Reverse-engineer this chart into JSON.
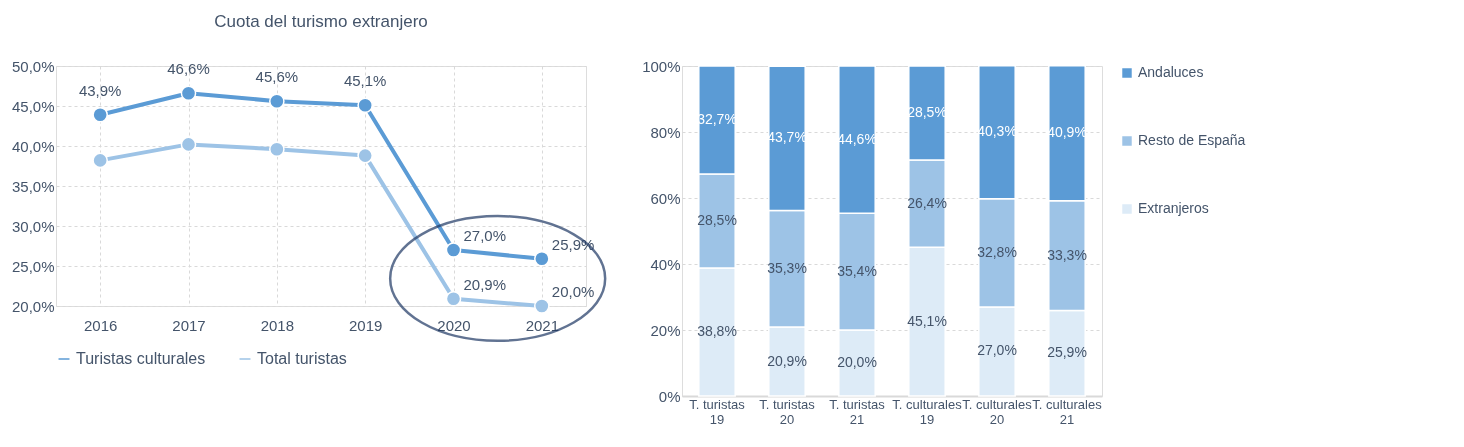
{
  "chart_data": [
    {
      "type": "line",
      "title": "Cuota del turismo extranjero",
      "categories": [
        "2016",
        "2017",
        "2018",
        "2019",
        "2020",
        "2021"
      ],
      "series": [
        {
          "name": "Turistas culturales",
          "color": "#5b9bd5",
          "values": [
            43.9,
            46.6,
            45.6,
            45.1,
            27.0,
            25.9
          ],
          "value_labels": [
            "43,9%",
            "46,6%",
            "45,6%",
            "45,1%",
            "27,0%",
            "25,9%"
          ]
        },
        {
          "name": "Total turistas",
          "color": "#9dc3e6",
          "values": [
            38.2,
            40.2,
            39.6,
            38.8,
            20.9,
            20.0
          ],
          "value_labels": [
            null,
            null,
            null,
            null,
            "20,9%",
            "20,0%"
          ]
        }
      ],
      "ylim": [
        20,
        50
      ],
      "yticks": [
        {
          "value": 20,
          "label": "20,0%"
        },
        {
          "value": 25,
          "label": "25,0%"
        },
        {
          "value": 30,
          "label": "30,0%"
        },
        {
          "value": 35,
          "label": "35,0%"
        },
        {
          "value": 40,
          "label": "40,0%"
        },
        {
          "value": 45,
          "label": "45,0%"
        },
        {
          "value": 50,
          "label": "50,0%"
        }
      ],
      "grid": true,
      "legend": "bottom",
      "marker": "circle",
      "line_style": "solid"
    },
    {
      "type": "bar",
      "stacked": true,
      "categories": [
        "T. turistas 19",
        "T. turistas 20",
        "T. turistas 21",
        "T. culturales 19",
        "T. culturales 20",
        "T. culturales 21"
      ],
      "series": [
        {
          "name": "Extranjeros",
          "color": "#ddebf7",
          "values": [
            38.8,
            20.9,
            20.0,
            45.1,
            27.0,
            25.9
          ],
          "value_labels": [
            "38,8%",
            "20,9%",
            "20,0%",
            "45,1%",
            "27,0%",
            "25,9%"
          ]
        },
        {
          "name": "Resto de España",
          "color": "#9dc3e6",
          "values": [
            28.5,
            35.3,
            35.4,
            26.4,
            32.8,
            33.3
          ],
          "value_labels": [
            "28,5%",
            "35,3%",
            "35,4%",
            "26,4%",
            "32,8%",
            "33,3%"
          ]
        },
        {
          "name": "Andaluces",
          "color": "#5b9bd5",
          "values": [
            32.7,
            43.7,
            44.6,
            28.5,
            40.3,
            40.9
          ],
          "value_labels": [
            "32,7%",
            "43,7%",
            "44,6%",
            "28,5%",
            "40,3%",
            "40,9%"
          ]
        }
      ],
      "ylim": [
        0,
        100
      ],
      "yticks": [
        {
          "value": 0,
          "label": "0%"
        },
        {
          "value": 20,
          "label": "20%"
        },
        {
          "value": 40,
          "label": "40%"
        },
        {
          "value": 60,
          "label": "60%"
        },
        {
          "value": 80,
          "label": "80%"
        },
        {
          "value": 100,
          "label": "100%"
        }
      ],
      "grid": "y",
      "legend": "right"
    }
  ]
}
